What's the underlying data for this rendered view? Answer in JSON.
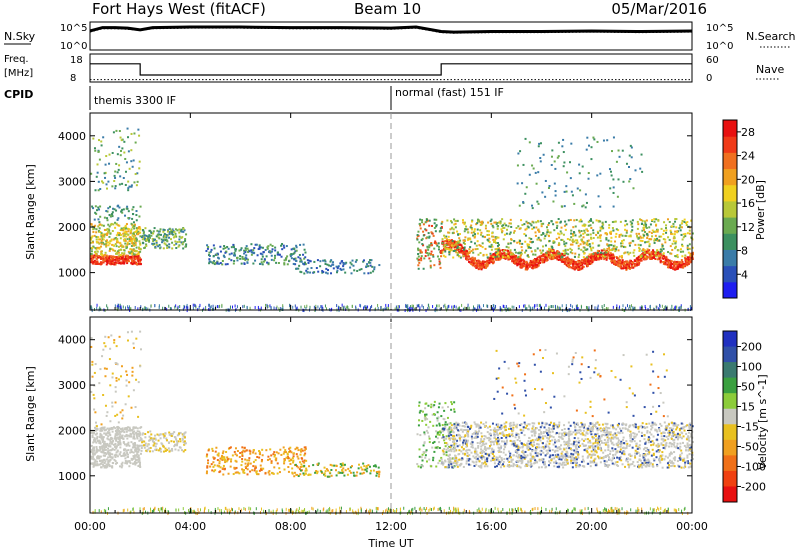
{
  "header": {
    "station": "Fort Hays West (fitACF)",
    "beam": "Beam 10",
    "date": "05/Mar/2016"
  },
  "labels": {
    "nsky": "N.Sky",
    "nsearch": "N.Search",
    "freq_line1": "Freq.",
    "freq_line2": "[MHz]",
    "nave": "Nave",
    "cpid": "CPID",
    "xlabel": "Time UT"
  },
  "cpid_segments": [
    {
      "start_hour": 0,
      "text": "themis 3300 IF"
    },
    {
      "start_hour": 12,
      "text": "normal (fast) 151 IF"
    }
  ],
  "small_axes": {
    "nsky_ticks": [
      "10^5",
      "10^0"
    ],
    "nsearch_ticks": [
      "10^5",
      "10^0"
    ],
    "freq_ticks": [
      "18",
      "8"
    ],
    "nave_ticks": [
      "60",
      "0"
    ]
  },
  "chart_data": [
    {
      "type": "line",
      "name": "noise",
      "x_hours": [
        0,
        0.5,
        1,
        1.5,
        2,
        2.5,
        4,
        6,
        8,
        10,
        12,
        13,
        14,
        14.5,
        16,
        18,
        20,
        22,
        24
      ],
      "nsky_log": [
        3.4,
        4.0,
        4.0,
        3.9,
        3.6,
        4.0,
        4.1,
        4.1,
        4.0,
        4.0,
        3.9,
        4.1,
        3.3,
        3.2,
        3.3,
        3.3,
        3.4,
        3.3,
        3.4
      ],
      "nsearch_log": [
        3.2,
        3.8,
        3.8,
        3.7,
        3.5,
        3.8,
        3.9,
        3.9,
        3.8,
        3.8,
        3.7,
        3.9,
        3.1,
        3.0,
        3.1,
        3.1,
        3.2,
        3.1,
        3.2
      ],
      "ylim": [
        0,
        5
      ]
    },
    {
      "type": "line",
      "name": "frequency",
      "x_hours": [
        0,
        2,
        2,
        14,
        14,
        24
      ],
      "freq_mhz": [
        14.5,
        14.5,
        10.5,
        10.5,
        14.5,
        14.5
      ],
      "nave": [
        5,
        5,
        5,
        5,
        5,
        5
      ],
      "ylim": [
        8,
        18
      ]
    },
    {
      "type": "heatmap",
      "name": "power",
      "xlim_hours": [
        0,
        24
      ],
      "xticks": [
        "00:00",
        "04:00",
        "08:00",
        "12:00",
        "16:00",
        "20:00",
        "00:00"
      ],
      "ylim_km": [
        180,
        4500
      ],
      "yticks": [
        1000,
        2000,
        3000,
        4000
      ],
      "ylabel": "Slant Range [km]",
      "colorbar_label": "Power [dB]",
      "colorbar_ticks": [
        4,
        8,
        12,
        16,
        20,
        24,
        28
      ],
      "colorbar_range": [
        0,
        30
      ],
      "colorbar_colors": [
        "#1e1ef0",
        "#2a50b8",
        "#3a7ca8",
        "#3c9060",
        "#6aaa50",
        "#b8c838",
        "#f0d020",
        "#f0a020",
        "#f07020",
        "#f03a18",
        "#e81010"
      ]
    },
    {
      "type": "heatmap",
      "name": "velocity",
      "xlim_hours": [
        0,
        24
      ],
      "xticks": [
        "00:00",
        "04:00",
        "08:00",
        "12:00",
        "16:00",
        "20:00",
        "00:00"
      ],
      "ylim_km": [
        180,
        4500
      ],
      "yticks": [
        1000,
        2000,
        3000,
        4000
      ],
      "ylabel": "Slant Range [km]",
      "colorbar_label": "Velocity [m s^-1]",
      "colorbar_ticks": [
        "200",
        "100",
        "50",
        "15",
        "-15",
        "-50",
        "-100",
        "-200"
      ],
      "colorbar_colors": [
        "#2030c0",
        "#3050a8",
        "#3a7a70",
        "#3aa040",
        "#8ccc3a",
        "#c8c8c0",
        "#e8c020",
        "#f0a020",
        "#f07018",
        "#f04010",
        "#e81010"
      ]
    }
  ]
}
